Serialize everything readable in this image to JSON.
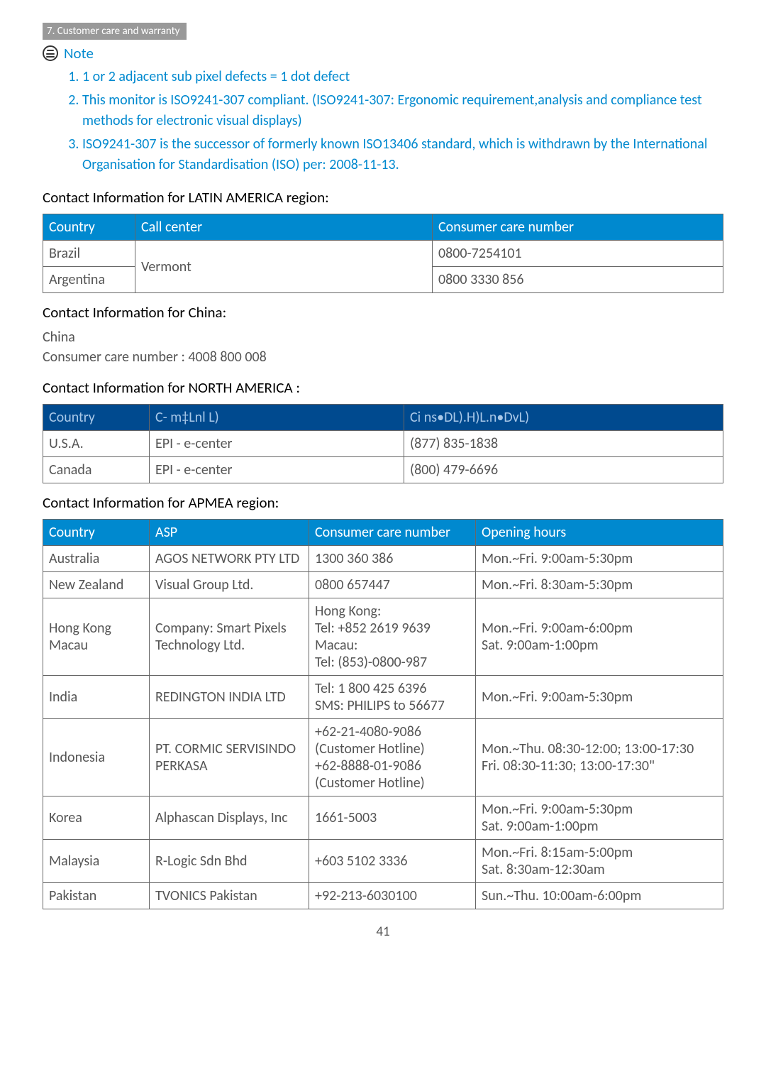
{
  "breadcrumb": "7. Customer care and warranty",
  "note_label": "Note",
  "notes": [
    "1 or 2 adjacent sub pixel defects = 1 dot defect",
    "This monitor is ISO9241-307 compliant. (ISO9241-307: Ergonomic requirement,analysis and compliance test methods for electronic visual displays)",
    "ISO9241-307 is the successor of formerly known ISO13406 standard, which is withdrawn by the International Organisation for Standardisation (ISO) per: 2008-11-13."
  ],
  "latin": {
    "title": "Contact Information for LATIN AMERICA region:",
    "headers": [
      "Country",
      "Call center",
      "Consumer care number"
    ],
    "header_bg": "#0089cf",
    "rows": [
      {
        "country": "Brazil",
        "number": "0800-7254101"
      },
      {
        "country": "Argentina",
        "number": "0800 3330 856"
      }
    ],
    "call_center": "Vermont"
  },
  "china": {
    "title": "Contact Information for China:",
    "line1": "China",
    "line2": "Consumer care number : 4008 800 008"
  },
  "na": {
    "title": "Contact Information for NORTH AMERICA :",
    "headers": [
      "Country",
      "C- m‡Lnl L)",
      "Ci ns•DL).H)L.n•DvL)"
    ],
    "header_bg": "#004a8f",
    "rows": [
      [
        "U.S.A.",
        "EPI - e-center",
        "(877) 835-1838"
      ],
      [
        "Canada",
        "EPI - e-center",
        "(800) 479-6696"
      ]
    ]
  },
  "apmea": {
    "title": "Contact Information for APMEA region:",
    "headers": [
      "Country",
      "ASP",
      "Consumer care number",
      "Opening hours"
    ],
    "header_bg": "#0089cf",
    "rows": [
      [
        "Australia",
        "AGOS NETWORK PTY LTD",
        "1300 360 386",
        "Mon.~Fri. 9:00am-5:30pm"
      ],
      [
        "New Zealand",
        "Visual Group Ltd.",
        "0800 657447",
        "Mon.~Fri. 8:30am-5:30pm"
      ],
      [
        "Hong Kong\nMacau",
        "Company: Smart Pixels Technology Ltd.",
        "Hong Kong:\nTel: +852 2619 9639\nMacau:\nTel: (853)-0800-987",
        "Mon.~Fri. 9:00am-6:00pm\nSat. 9:00am-1:00pm"
      ],
      [
        "India",
        "REDINGTON INDIA LTD",
        "Tel: 1 800 425 6396\nSMS: PHILIPS to 56677",
        "Mon.~Fri. 9:00am-5:30pm"
      ],
      [
        "Indonesia",
        "PT. CORMIC SERVISINDO PERKASA",
        "+62-21-4080-9086 (Customer Hotline)\n+62-8888-01-9086 (Customer Hotline)",
        "Mon.~Thu. 08:30-12:00; 13:00-17:30\nFri. 08:30-11:30; 13:00-17:30\""
      ],
      [
        "Korea",
        "Alphascan Displays, Inc",
        "1661-5003",
        "Mon.~Fri. 9:00am-5:30pm\nSat. 9:00am-1:00pm"
      ],
      [
        "Malaysia",
        "R-Logic Sdn Bhd",
        "+603 5102 3336",
        "Mon.~Fri. 8:15am-5:00pm\nSat. 8:30am-12:30am"
      ],
      [
        "Pakistan",
        "TVONICS Pakistan",
        "+92-213-6030100",
        "Sun.~Thu. 10:00am-6:00pm"
      ]
    ]
  },
  "page_number": "41"
}
